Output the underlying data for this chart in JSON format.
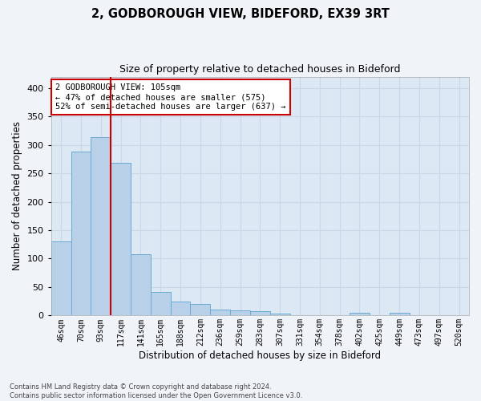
{
  "title1": "2, GODBOROUGH VIEW, BIDEFORD, EX39 3RT",
  "title2": "Size of property relative to detached houses in Bideford",
  "xlabel": "Distribution of detached houses by size in Bideford",
  "ylabel": "Number of detached properties",
  "footnote1": "Contains HM Land Registry data © Crown copyright and database right 2024.",
  "footnote2": "Contains public sector information licensed under the Open Government Licence v3.0.",
  "bar_labels": [
    "46sqm",
    "70sqm",
    "93sqm",
    "117sqm",
    "141sqm",
    "165sqm",
    "188sqm",
    "212sqm",
    "236sqm",
    "259sqm",
    "283sqm",
    "307sqm",
    "331sqm",
    "354sqm",
    "378sqm",
    "402sqm",
    "425sqm",
    "449sqm",
    "473sqm",
    "497sqm",
    "520sqm"
  ],
  "bar_values": [
    130,
    288,
    313,
    268,
    108,
    42,
    25,
    21,
    10,
    9,
    7,
    4,
    0,
    0,
    0,
    5,
    0,
    5,
    0,
    0,
    0
  ],
  "bar_color": "#b8d0e8",
  "bar_edge_color": "#6aaad4",
  "highlight_line_x": 2.5,
  "annotation_text1": "2 GODBOROUGH VIEW: 105sqm",
  "annotation_text2": "← 47% of detached houses are smaller (575)",
  "annotation_text3": "52% of semi-detached houses are larger (637) →",
  "annotation_box_facecolor": "#ffffff",
  "annotation_box_edge": "#cc0000",
  "highlight_line_color": "#cc0000",
  "grid_color": "#c8d8e8",
  "background_color": "#dce8f4",
  "fig_facecolor": "#f0f4f8",
  "ylim": [
    0,
    420
  ],
  "xlim": [
    -0.5,
    20.5
  ],
  "yticks": [
    0,
    50,
    100,
    150,
    200,
    250,
    300,
    350,
    400
  ]
}
